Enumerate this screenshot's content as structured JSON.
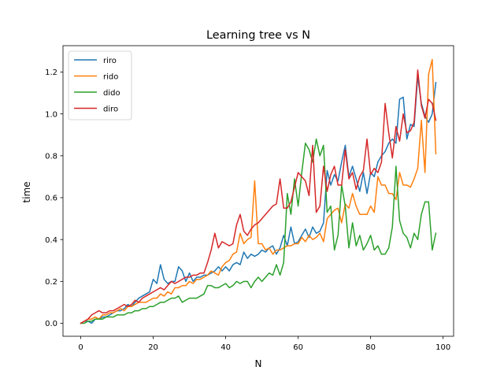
{
  "chart_data": {
    "type": "line",
    "title": "Learning tree vs N",
    "xlabel": "N",
    "ylabel": "time",
    "xlim": [
      -4.9,
      102.9
    ],
    "ylim": [
      -0.062,
      1.326
    ],
    "grid": false,
    "legend_position": "top-left",
    "xticks": [
      0,
      20,
      40,
      60,
      80,
      100
    ],
    "yticks": [
      0.0,
      0.2,
      0.4,
      0.6,
      0.8,
      1.0,
      1.2
    ],
    "xtick_labels": [
      "0",
      "20",
      "40",
      "60",
      "80",
      "100"
    ],
    "ytick_labels": [
      "0.0",
      "0.2",
      "0.4",
      "0.6",
      "0.8",
      "1.0",
      "1.2"
    ],
    "x": [
      0,
      1,
      2,
      3,
      4,
      5,
      6,
      7,
      8,
      9,
      10,
      11,
      12,
      13,
      14,
      15,
      16,
      17,
      18,
      19,
      20,
      21,
      22,
      23,
      24,
      25,
      26,
      27,
      28,
      29,
      30,
      31,
      32,
      33,
      34,
      35,
      36,
      37,
      38,
      39,
      40,
      41,
      42,
      43,
      44,
      45,
      46,
      47,
      48,
      49,
      50,
      51,
      52,
      53,
      54,
      55,
      56,
      57,
      58,
      59,
      60,
      61,
      62,
      63,
      64,
      65,
      66,
      67,
      68,
      69,
      70,
      71,
      72,
      73,
      74,
      75,
      76,
      77,
      78,
      79,
      80,
      81,
      82,
      83,
      84,
      85,
      86,
      87,
      88,
      89,
      90,
      91,
      92,
      93,
      94,
      95,
      96,
      97,
      98
    ],
    "series": [
      {
        "name": "riro",
        "color": "#1f77b4",
        "values": [
          0.0,
          0.01,
          0.01,
          0.0,
          0.02,
          0.02,
          0.03,
          0.03,
          0.04,
          0.05,
          0.06,
          0.06,
          0.07,
          0.09,
          0.08,
          0.1,
          0.12,
          0.13,
          0.14,
          0.15,
          0.21,
          0.19,
          0.28,
          0.21,
          0.19,
          0.2,
          0.2,
          0.27,
          0.25,
          0.2,
          0.24,
          0.2,
          0.22,
          0.22,
          0.23,
          0.23,
          0.24,
          0.25,
          0.27,
          0.25,
          0.27,
          0.25,
          0.28,
          0.29,
          0.28,
          0.34,
          0.31,
          0.33,
          0.32,
          0.33,
          0.35,
          0.34,
          0.36,
          0.37,
          0.33,
          0.36,
          0.42,
          0.37,
          0.46,
          0.38,
          0.39,
          0.42,
          0.45,
          0.41,
          0.46,
          0.43,
          0.44,
          0.48,
          0.73,
          0.66,
          0.71,
          0.68,
          0.77,
          0.85,
          0.7,
          0.75,
          0.69,
          0.63,
          0.72,
          0.62,
          0.72,
          0.7,
          0.77,
          0.8,
          0.82,
          0.86,
          0.88,
          0.86,
          1.07,
          1.08,
          0.88,
          0.95,
          0.94,
          1.18,
          1.05,
          0.99,
          0.96,
          1.0,
          1.15
        ]
      },
      {
        "name": "rido",
        "color": "#ff7f0e",
        "values": [
          0.0,
          0.01,
          0.02,
          0.02,
          0.03,
          0.02,
          0.04,
          0.04,
          0.05,
          0.05,
          0.06,
          0.07,
          0.06,
          0.08,
          0.08,
          0.09,
          0.1,
          0.1,
          0.1,
          0.11,
          0.12,
          0.12,
          0.14,
          0.13,
          0.15,
          0.14,
          0.17,
          0.17,
          0.18,
          0.18,
          0.2,
          0.19,
          0.21,
          0.21,
          0.22,
          0.23,
          0.25,
          0.24,
          0.23,
          0.27,
          0.29,
          0.3,
          0.33,
          0.34,
          0.43,
          0.38,
          0.4,
          0.41,
          0.68,
          0.38,
          0.38,
          0.35,
          0.36,
          0.33,
          0.35,
          0.35,
          0.36,
          0.37,
          0.37,
          0.38,
          0.38,
          0.41,
          0.39,
          0.42,
          0.4,
          0.41,
          0.43,
          0.39,
          0.5,
          0.52,
          0.54,
          0.55,
          0.48,
          0.57,
          0.55,
          0.62,
          0.56,
          0.52,
          0.52,
          0.52,
          0.56,
          0.53,
          0.7,
          0.66,
          0.66,
          0.62,
          0.62,
          0.59,
          0.72,
          0.66,
          0.66,
          0.65,
          0.69,
          0.74,
          0.97,
          0.72,
          1.19,
          1.26,
          0.81
        ]
      },
      {
        "name": "dido",
        "color": "#2ca02c",
        "values": [
          0.0,
          0.0,
          0.01,
          0.01,
          0.02,
          0.02,
          0.02,
          0.03,
          0.03,
          0.03,
          0.04,
          0.04,
          0.04,
          0.05,
          0.05,
          0.06,
          0.06,
          0.07,
          0.07,
          0.08,
          0.08,
          0.09,
          0.1,
          0.1,
          0.11,
          0.12,
          0.12,
          0.13,
          0.1,
          0.11,
          0.12,
          0.12,
          0.12,
          0.13,
          0.14,
          0.18,
          0.18,
          0.17,
          0.17,
          0.18,
          0.19,
          0.17,
          0.18,
          0.2,
          0.19,
          0.2,
          0.2,
          0.17,
          0.2,
          0.22,
          0.2,
          0.22,
          0.24,
          0.23,
          0.28,
          0.23,
          0.29,
          0.62,
          0.52,
          0.69,
          0.56,
          0.72,
          0.86,
          0.83,
          0.77,
          0.88,
          0.8,
          0.85,
          0.53,
          0.56,
          0.35,
          0.42,
          0.66,
          0.56,
          0.36,
          0.48,
          0.37,
          0.42,
          0.35,
          0.38,
          0.42,
          0.35,
          0.37,
          0.33,
          0.33,
          0.36,
          0.46,
          0.75,
          0.49,
          0.43,
          0.41,
          0.36,
          0.43,
          0.4,
          0.52,
          0.58,
          0.58,
          0.35,
          0.43
        ]
      },
      {
        "name": "diro",
        "color": "#d62728",
        "values": [
          0.0,
          0.01,
          0.02,
          0.04,
          0.05,
          0.06,
          0.05,
          0.05,
          0.06,
          0.06,
          0.07,
          0.08,
          0.09,
          0.08,
          0.09,
          0.11,
          0.1,
          0.12,
          0.13,
          0.14,
          0.15,
          0.16,
          0.17,
          0.16,
          0.18,
          0.2,
          0.19,
          0.2,
          0.21,
          0.22,
          0.22,
          0.23,
          0.23,
          0.24,
          0.24,
          0.29,
          0.35,
          0.43,
          0.36,
          0.39,
          0.38,
          0.37,
          0.38,
          0.47,
          0.52,
          0.44,
          0.42,
          0.45,
          0.47,
          0.48,
          0.5,
          0.52,
          0.54,
          0.56,
          0.57,
          0.69,
          0.55,
          0.55,
          0.58,
          0.65,
          0.72,
          0.7,
          0.68,
          0.61,
          0.85,
          0.53,
          0.56,
          0.75,
          0.63,
          0.71,
          0.75,
          0.66,
          0.66,
          0.83,
          0.69,
          0.72,
          0.64,
          0.7,
          0.73,
          0.88,
          0.71,
          0.74,
          0.72,
          0.77,
          1.05,
          0.91,
          0.79,
          0.94,
          0.87,
          1.0,
          0.91,
          0.92,
          0.96,
          1.21,
          1.04,
          0.98,
          1.07,
          1.05,
          0.97
        ]
      }
    ]
  }
}
